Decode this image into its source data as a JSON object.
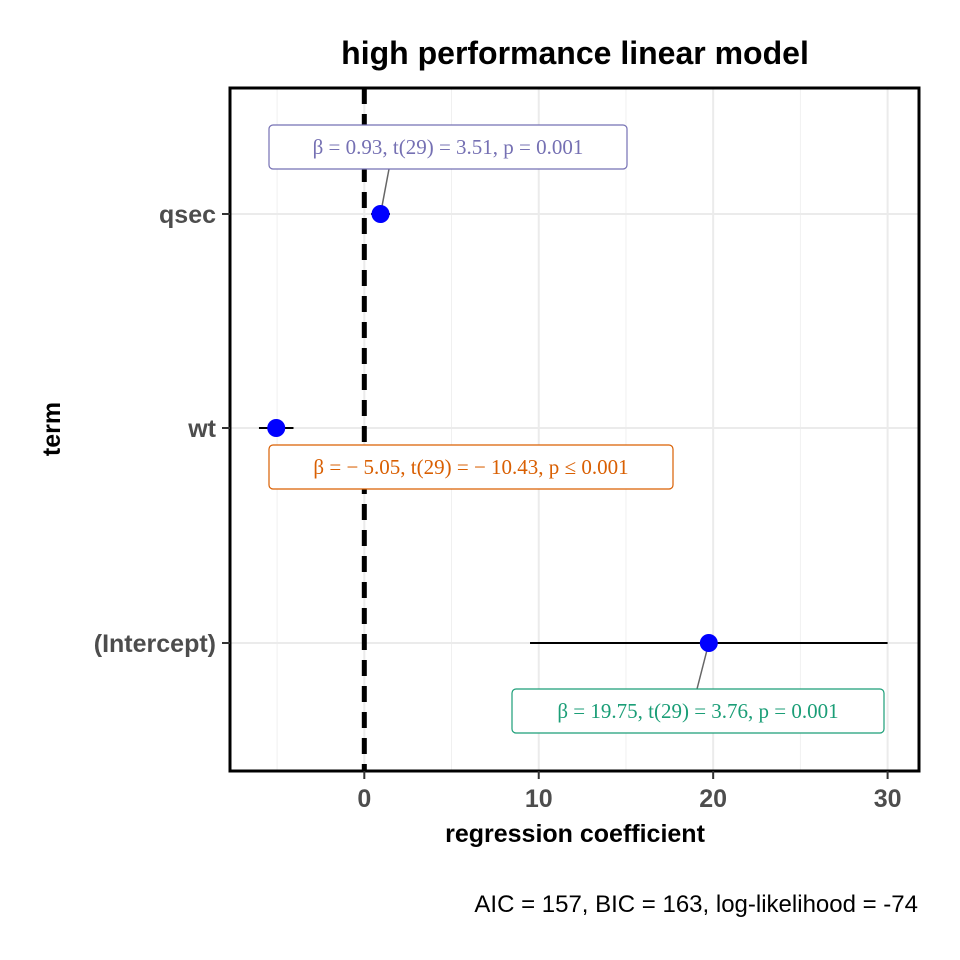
{
  "chart_data": {
    "type": "scatter",
    "title": "high performance linear model",
    "xlabel": "regression coefficient",
    "ylabel": "term",
    "caption": "AIC = 157, BIC = 163, log-likelihood = -74",
    "xlim": [
      -7.7,
      31.8
    ],
    "x_ticks": [
      0,
      10,
      20,
      30
    ],
    "x_tick_labels": [
      "0",
      "10",
      "20",
      "30"
    ],
    "reference_line": 0,
    "grid": true,
    "terms": [
      {
        "term": "qsec",
        "estimate": 0.93,
        "conf_low": 0.39,
        "conf_high": 1.47,
        "label": "β = 0.93,  t(29) = 3.51,  p = 0.001",
        "label_color": "#7570b3"
      },
      {
        "term": "wt",
        "estimate": -5.05,
        "conf_low": -6.04,
        "conf_high": -4.06,
        "label": "β = − 5.05,  t(29) = − 10.43,  p ≤ 0.001",
        "label_color": "#d95f02"
      },
      {
        "term": "(Intercept)",
        "estimate": 19.75,
        "conf_low": 9.5,
        "conf_high": 30.0,
        "label": "β = 19.75,  t(29) = 3.76,  p = 0.001",
        "label_color": "#1b9e77"
      }
    ],
    "point_color": "#0000ff"
  }
}
